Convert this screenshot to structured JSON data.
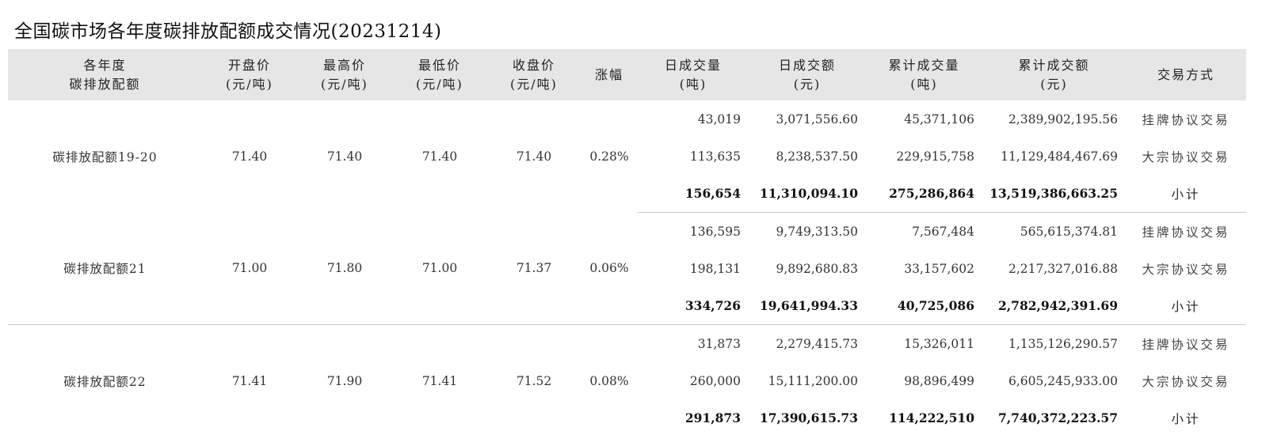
{
  "title": "全国碳市场各年度碳排放配额成交情况(20231214)",
  "headers": {
    "year": [
      "各年度",
      "碳排放配额"
    ],
    "open": [
      "开盘价",
      "(元/吨)"
    ],
    "high": [
      "最高价",
      "(元/吨)"
    ],
    "low": [
      "最低价",
      "(元/吨)"
    ],
    "close": [
      "收盘价",
      "(元/吨)"
    ],
    "change": [
      "涨幅"
    ],
    "daily_volume": [
      "日成交量",
      "(吨)"
    ],
    "daily_amount": [
      "日成交额",
      "(元)"
    ],
    "cum_volume": [
      "累计成交量",
      "(吨)"
    ],
    "cum_amount": [
      "累计成交额",
      "(元)"
    ],
    "mode": [
      "交易方式"
    ]
  },
  "groups": [
    {
      "name": "碳排放配额19-20",
      "open": "71.40",
      "high": "71.40",
      "low": "71.40",
      "close": "71.40",
      "change": "0.28%",
      "rows": [
        {
          "daily_volume": "43,019",
          "daily_amount": "3,071,556.60",
          "cum_volume": "45,371,106",
          "cum_amount": "2,389,902,195.56",
          "mode": "挂牌协议交易"
        },
        {
          "daily_volume": "113,635",
          "daily_amount": "8,238,537.50",
          "cum_volume": "229,915,758",
          "cum_amount": "11,129,484,467.69",
          "mode": "大宗协议交易"
        },
        {
          "daily_volume": "156,654",
          "daily_amount": "11,310,094.10",
          "cum_volume": "275,286,864",
          "cum_amount": "13,519,386,663.25",
          "mode": "小计"
        }
      ]
    },
    {
      "name": "碳排放配额21",
      "open": "71.00",
      "high": "71.80",
      "low": "71.00",
      "close": "71.37",
      "change": "0.06%",
      "rows": [
        {
          "daily_volume": "136,595",
          "daily_amount": "9,749,313.50",
          "cum_volume": "7,567,484",
          "cum_amount": "565,615,374.81",
          "mode": "挂牌协议交易"
        },
        {
          "daily_volume": "198,131",
          "daily_amount": "9,892,680.83",
          "cum_volume": "33,157,602",
          "cum_amount": "2,217,327,016.88",
          "mode": "大宗协议交易"
        },
        {
          "daily_volume": "334,726",
          "daily_amount": "19,641,994.33",
          "cum_volume": "40,725,086",
          "cum_amount": "2,782,942,391.69",
          "mode": "小计"
        }
      ]
    },
    {
      "name": "碳排放配额22",
      "open": "71.41",
      "high": "71.90",
      "low": "71.41",
      "close": "71.52",
      "change": "0.08%",
      "rows": [
        {
          "daily_volume": "31,873",
          "daily_amount": "2,279,415.73",
          "cum_volume": "15,326,011",
          "cum_amount": "1,135,126,290.57",
          "mode": "挂牌协议交易"
        },
        {
          "daily_volume": "260,000",
          "daily_amount": "15,111,200.00",
          "cum_volume": "98,896,499",
          "cum_amount": "6,605,245,933.00",
          "mode": "大宗协议交易"
        },
        {
          "daily_volume": "291,873",
          "daily_amount": "17,390,615.73",
          "cum_volume": "114,222,510",
          "cum_amount": "7,740,372,223.57",
          "mode": "小计"
        }
      ]
    }
  ]
}
